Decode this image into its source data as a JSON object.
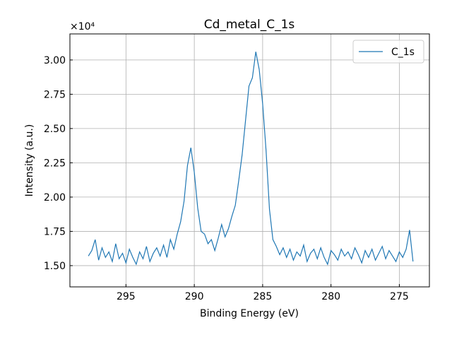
{
  "chart_data": {
    "type": "line",
    "title": "Cd_metal_C_1s",
    "x_label": "Binding Energy (eV)",
    "y_label": "Intensity (a.u.)",
    "y_offset_text": "×10⁴",
    "xlim": [
      299.1,
      272.8
    ],
    "ylim": [
      13450,
      31900
    ],
    "xticks": [
      295,
      290,
      285,
      280,
      275
    ],
    "yticks": [
      {
        "value": 15000,
        "label": "1.50"
      },
      {
        "value": 17500,
        "label": "1.75"
      },
      {
        "value": 20000,
        "label": "2.00"
      },
      {
        "value": 22500,
        "label": "2.25"
      },
      {
        "value": 25000,
        "label": "2.50"
      },
      {
        "value": 27500,
        "label": "2.75"
      },
      {
        "value": 30000,
        "label": "3.00"
      }
    ],
    "grid": true,
    "legend": "upper right",
    "x": [
      297.75,
      297.5,
      297.25,
      297,
      296.75,
      296.5,
      296.25,
      296,
      295.75,
      295.5,
      295.25,
      295,
      294.75,
      294.5,
      294.25,
      294,
      293.75,
      293.5,
      293.25,
      293,
      292.75,
      292.5,
      292.25,
      292,
      291.75,
      291.5,
      291.25,
      291,
      290.75,
      290.5,
      290.25,
      290,
      289.75,
      289.5,
      289.25,
      289,
      288.75,
      288.5,
      288.25,
      288,
      287.75,
      287.5,
      287.25,
      287,
      286.75,
      286.5,
      286.25,
      286,
      285.75,
      285.5,
      285.25,
      285,
      284.75,
      284.5,
      284.25,
      284,
      283.75,
      283.5,
      283.25,
      283,
      282.75,
      282.5,
      282.25,
      282,
      281.75,
      281.5,
      281.25,
      281,
      280.75,
      280.5,
      280.25,
      280,
      279.75,
      279.5,
      279.25,
      279,
      278.75,
      278.5,
      278.25,
      278,
      277.75,
      277.5,
      277.25,
      277,
      276.75,
      276.5,
      276.25,
      276,
      275.75,
      275.5,
      275.25,
      275,
      274.75,
      274.5,
      274.25,
      274
    ],
    "series": [
      {
        "name": "C_1s",
        "color": "#1f77b4",
        "values": [
          15700,
          16100,
          16900,
          15400,
          16300,
          15600,
          16000,
          15300,
          16600,
          15500,
          15900,
          15200,
          16200,
          15600,
          15100,
          16000,
          15500,
          16400,
          15300,
          15900,
          16300,
          15700,
          16500,
          15600,
          16900,
          16200,
          17300,
          18200,
          19700,
          22300,
          23600,
          21800,
          19200,
          17500,
          17300,
          16600,
          16900,
          16100,
          17000,
          18000,
          17100,
          17700,
          18600,
          19400,
          21200,
          23100,
          25600,
          28100,
          28700,
          30600,
          29300,
          26800,
          23400,
          19100,
          16900,
          16400,
          15800,
          16300,
          15600,
          16200,
          15400,
          16000,
          15700,
          16500,
          15300,
          15900,
          16200,
          15500,
          16300,
          15600,
          15100,
          16100,
          15800,
          15400,
          16200,
          15700,
          16000,
          15500,
          16300,
          15800,
          15200,
          16100,
          15600,
          16200,
          15400,
          15900,
          16400,
          15500,
          16100,
          15700,
          15300,
          16000,
          15600,
          16200,
          17600,
          15300
        ]
      }
    ]
  }
}
